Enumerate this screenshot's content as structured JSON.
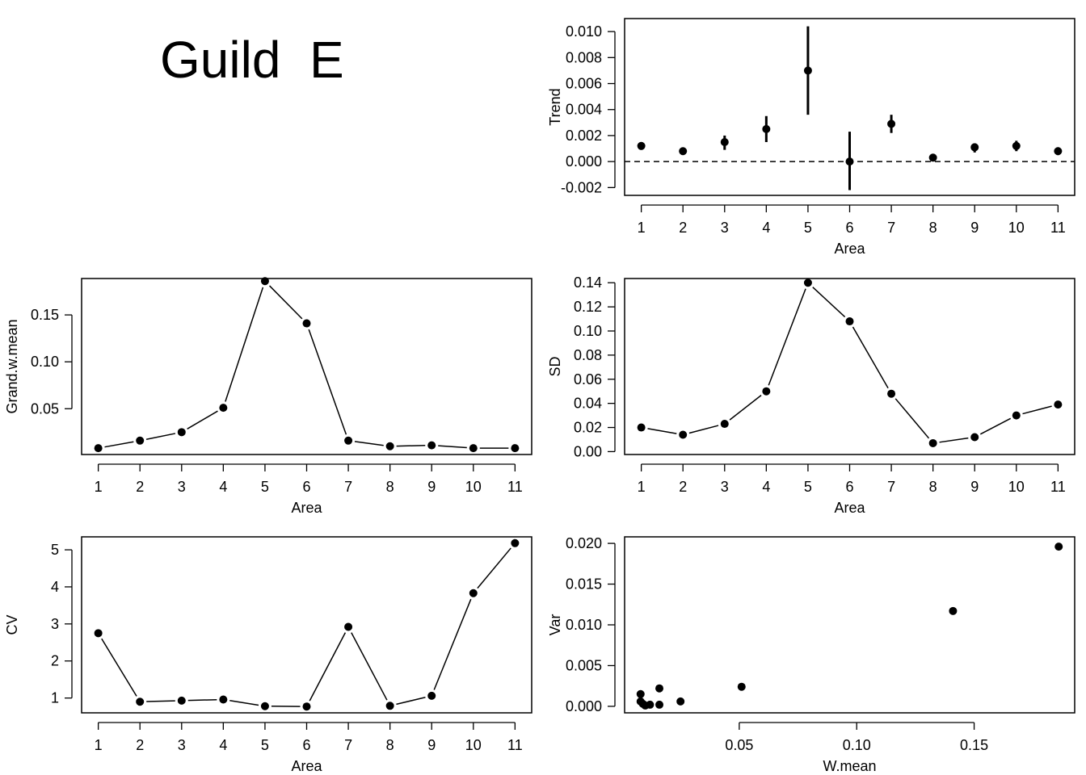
{
  "title": "Guild  E",
  "chart_data": [
    {
      "id": "trend",
      "type": "scatter",
      "error_bars": true,
      "reference_line": {
        "y": 0,
        "style": "dashed"
      },
      "xlabel": "Area",
      "ylabel": "Trend",
      "xlim": [
        0.6,
        11.4
      ],
      "ylim": [
        -0.0026,
        0.011
      ],
      "x_ticks": [
        1,
        2,
        3,
        4,
        5,
        6,
        7,
        8,
        9,
        10,
        11
      ],
      "x_tick_labels": [
        "1",
        "2",
        "3",
        "4",
        "5",
        "6",
        "7",
        "8",
        "9",
        "10",
        "11"
      ],
      "y_ticks": [
        -0.002,
        0.0,
        0.002,
        0.004,
        0.006,
        0.008,
        0.01
      ],
      "y_tick_labels": [
        "-0.002",
        "0.000",
        "0.002",
        "0.004",
        "0.006",
        "0.008",
        "0.010"
      ],
      "x": [
        1,
        2,
        3,
        4,
        5,
        6,
        7,
        8,
        9,
        10,
        11
      ],
      "y": [
        0.0012,
        0.0008,
        0.0015,
        0.0025,
        0.007,
        0.0,
        0.0029,
        0.0003,
        0.0011,
        0.0012,
        0.0008
      ],
      "y_lower": [
        0.0009,
        0.0006,
        0.0009,
        0.0015,
        0.0036,
        -0.0022,
        0.0022,
        0.0002,
        0.0007,
        0.0008,
        0.0005
      ],
      "y_upper": [
        0.0015,
        0.001,
        0.002,
        0.0035,
        0.0104,
        0.0023,
        0.0036,
        0.0005,
        0.0014,
        0.0016,
        0.0011
      ]
    },
    {
      "id": "grand-w-mean",
      "type": "line",
      "markers": true,
      "xlabel": "Area",
      "ylabel": "Grand.w.mean",
      "xlim": [
        0.6,
        11.4
      ],
      "ylim": [
        0.0012,
        0.1888
      ],
      "x_ticks": [
        1,
        2,
        3,
        4,
        5,
        6,
        7,
        8,
        9,
        10,
        11
      ],
      "x_tick_labels": [
        "1",
        "2",
        "3",
        "4",
        "5",
        "6",
        "7",
        "8",
        "9",
        "10",
        "11"
      ],
      "y_ticks": [
        0.05,
        0.1,
        0.15
      ],
      "y_tick_labels": [
        "0.05",
        "0.10",
        "0.15"
      ],
      "x": [
        1,
        2,
        3,
        4,
        5,
        6,
        7,
        8,
        9,
        10,
        11
      ],
      "y": [
        0.008,
        0.016,
        0.025,
        0.051,
        0.186,
        0.141,
        0.016,
        0.01,
        0.011,
        0.008,
        0.008
      ]
    },
    {
      "id": "sd",
      "type": "line",
      "markers": true,
      "xlabel": "Area",
      "ylabel": "SD",
      "xlim": [
        0.6,
        11.4
      ],
      "ylim": [
        -0.0024,
        0.1435
      ],
      "x_ticks": [
        1,
        2,
        3,
        4,
        5,
        6,
        7,
        8,
        9,
        10,
        11
      ],
      "x_tick_labels": [
        "1",
        "2",
        "3",
        "4",
        "5",
        "6",
        "7",
        "8",
        "9",
        "10",
        "11"
      ],
      "y_ticks": [
        0.0,
        0.02,
        0.04,
        0.06,
        0.08,
        0.1,
        0.12,
        0.14
      ],
      "y_tick_labels": [
        "0.00",
        "0.02",
        "0.04",
        "0.06",
        "0.08",
        "0.10",
        "0.12",
        "0.14"
      ],
      "x": [
        1,
        2,
        3,
        4,
        5,
        6,
        7,
        8,
        9,
        10,
        11
      ],
      "y": [
        0.02,
        0.014,
        0.023,
        0.05,
        0.14,
        0.108,
        0.048,
        0.007,
        0.012,
        0.03,
        0.039
      ]
    },
    {
      "id": "cv",
      "type": "line",
      "markers": true,
      "xlabel": "Area",
      "ylabel": "CV",
      "xlim": [
        0.6,
        11.4
      ],
      "ylim": [
        0.6,
        5.35
      ],
      "x_ticks": [
        1,
        2,
        3,
        4,
        5,
        6,
        7,
        8,
        9,
        10,
        11
      ],
      "x_tick_labels": [
        "1",
        "2",
        "3",
        "4",
        "5",
        "6",
        "7",
        "8",
        "9",
        "10",
        "11"
      ],
      "y_ticks": [
        1,
        2,
        3,
        4,
        5
      ],
      "y_tick_labels": [
        "1",
        "2",
        "3",
        "4",
        "5"
      ],
      "x": [
        1,
        2,
        3,
        4,
        5,
        6,
        7,
        8,
        9,
        10,
        11
      ],
      "y": [
        2.75,
        0.9,
        0.93,
        0.96,
        0.78,
        0.77,
        2.92,
        0.79,
        1.06,
        3.83,
        5.18
      ]
    },
    {
      "id": "var-vs-wmean",
      "type": "scatter",
      "xlabel": "W.mean",
      "ylabel": "Var",
      "xlim": [
        0.0012,
        0.1928
      ],
      "ylim": [
        -0.0008,
        0.0208
      ],
      "x_ticks": [
        0.05,
        0.1,
        0.15
      ],
      "x_tick_labels": [
        "0.05",
        "0.10",
        "0.15"
      ],
      "y_ticks": [
        0.0,
        0.005,
        0.01,
        0.015,
        0.02
      ],
      "y_tick_labels": [
        "0.000",
        "0.005",
        "0.010",
        "0.015",
        "0.020"
      ],
      "x": [
        0.008,
        0.008,
        0.009,
        0.01,
        0.012,
        0.016,
        0.016,
        0.025,
        0.051,
        0.141,
        0.186
      ],
      "y": [
        0.0015,
        0.0006,
        0.0003,
        0.0001,
        0.0002,
        0.0022,
        0.0002,
        0.0006,
        0.0024,
        0.0117,
        0.0196
      ]
    }
  ]
}
